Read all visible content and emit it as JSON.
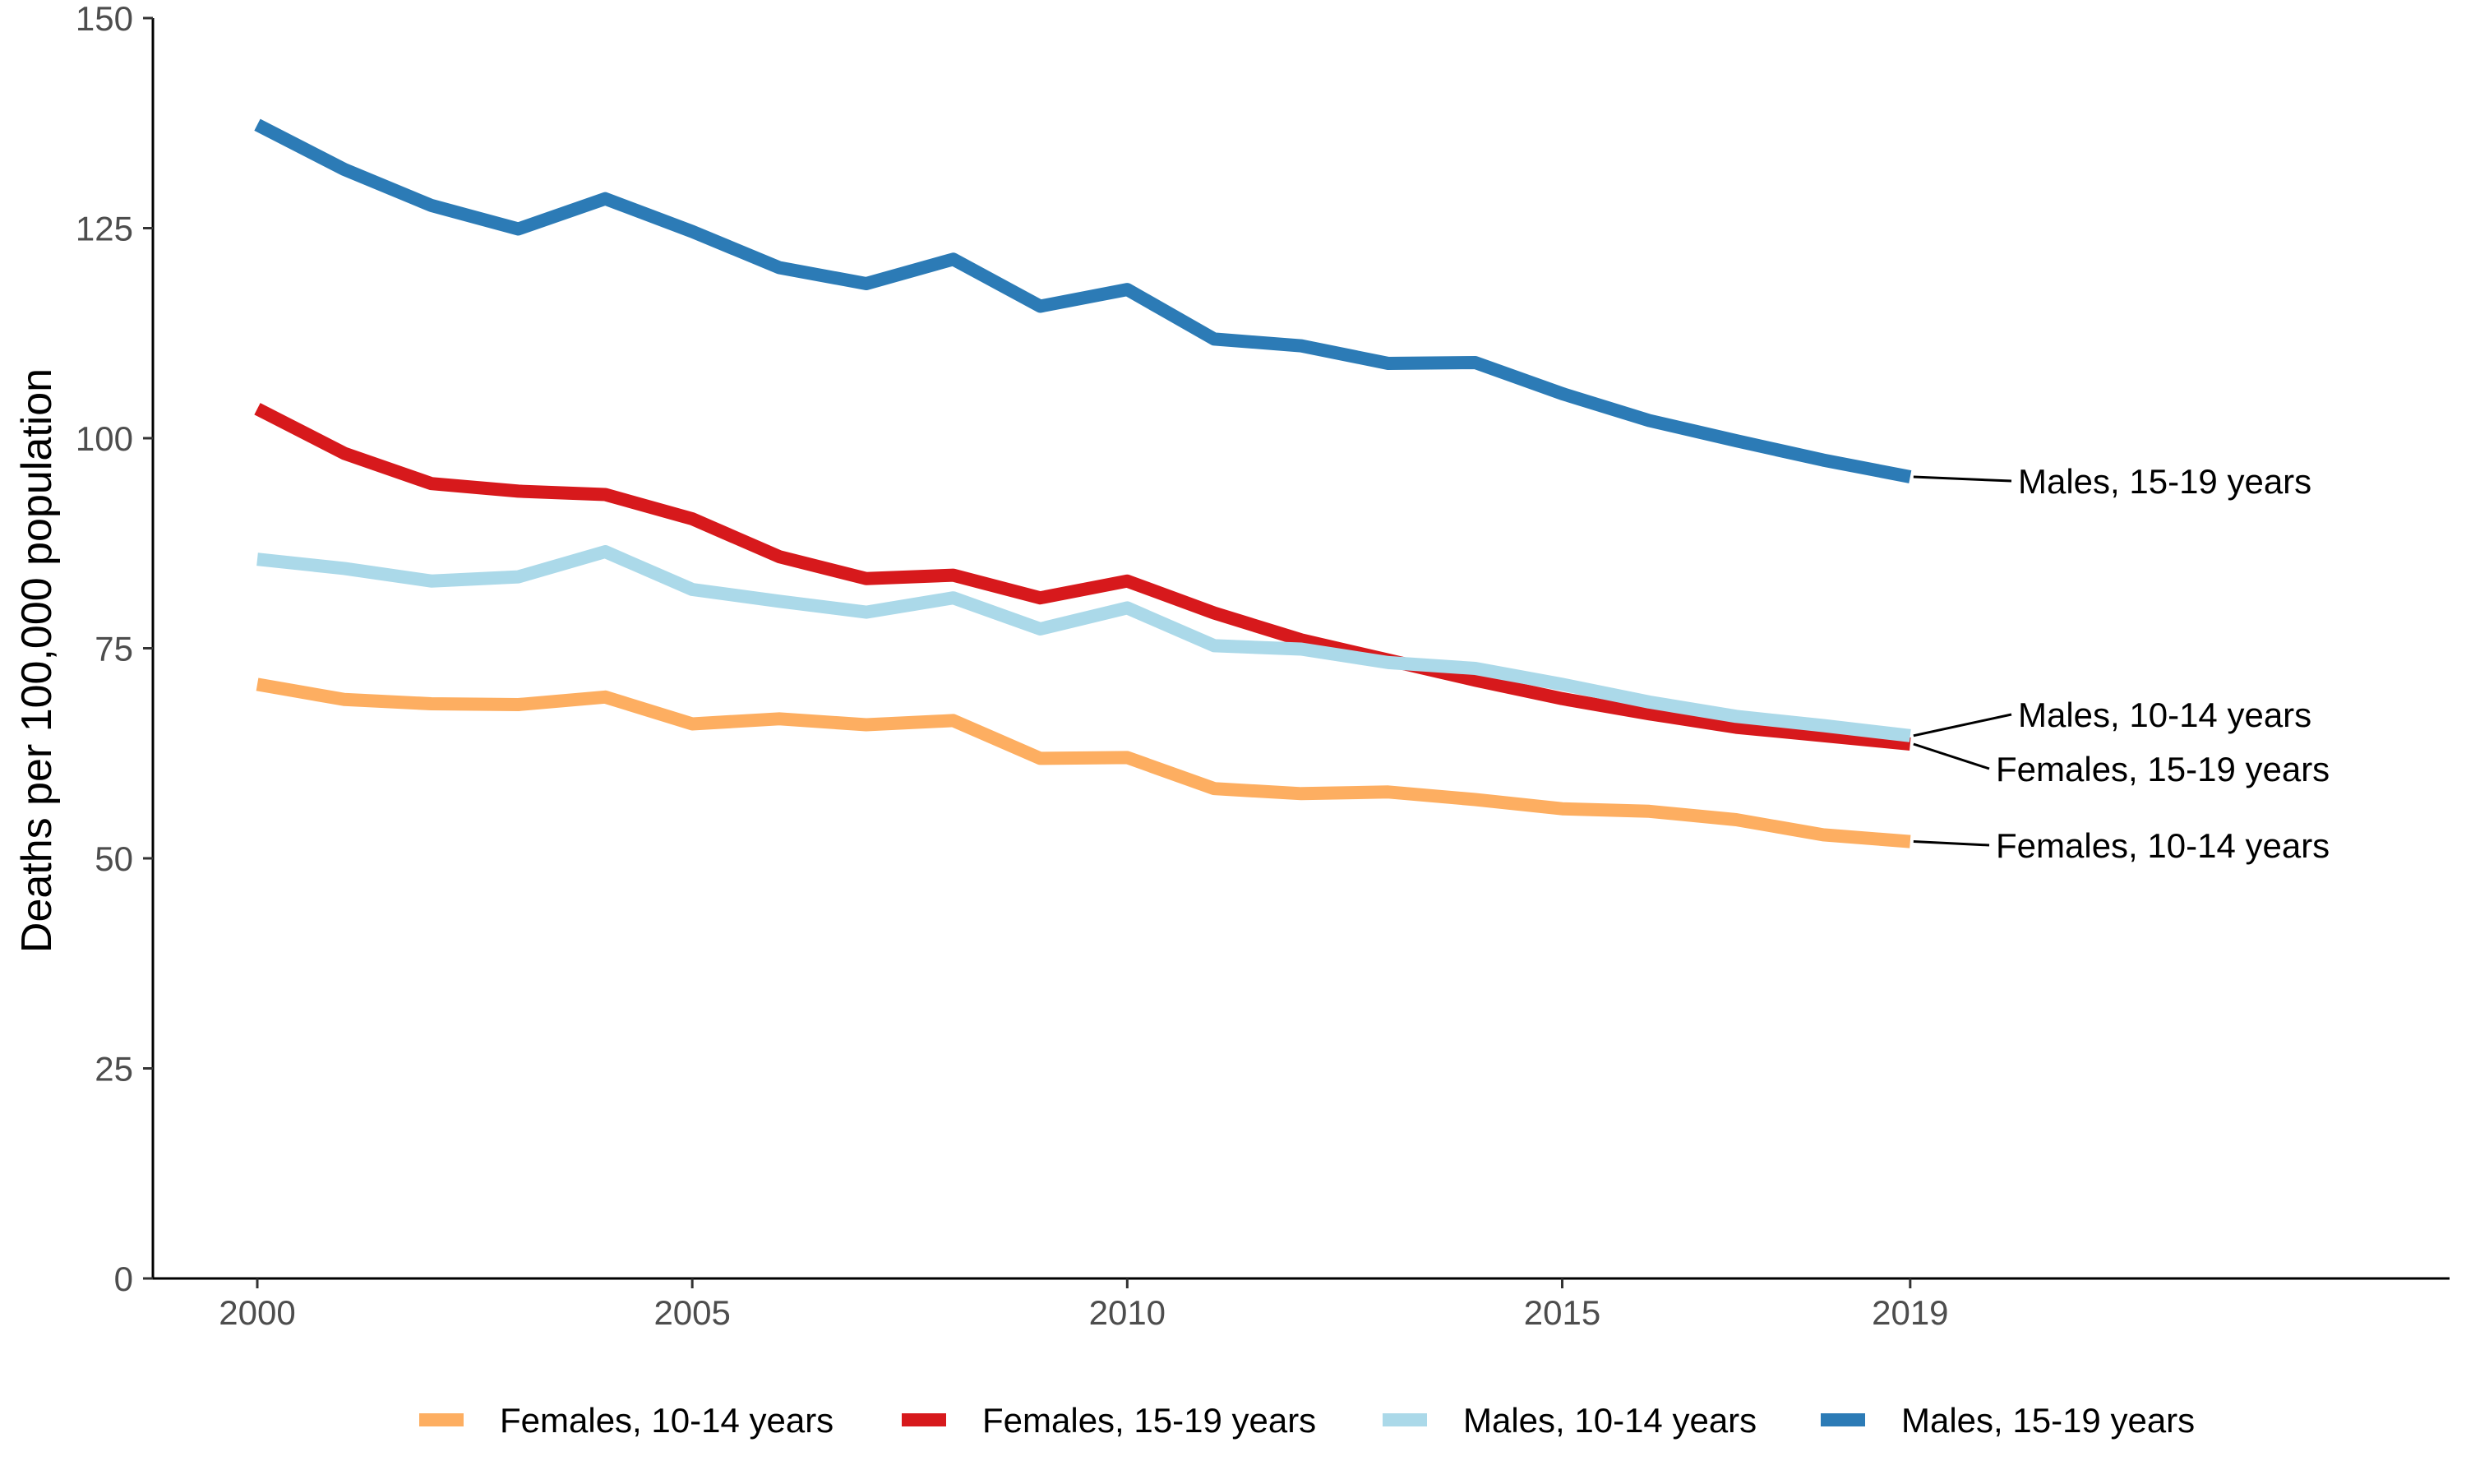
{
  "chart_data": {
    "type": "line",
    "title": "",
    "xlabel": "",
    "ylabel": "Deaths per 100,000 population",
    "xlim": [
      1998.8,
      2025.2
    ],
    "ylim": [
      0,
      150
    ],
    "x_ticks": [
      2000,
      2005,
      2010,
      2015,
      2019
    ],
    "x_tick_labels": [
      "2000",
      "2005",
      "2010",
      "2015",
      "2019"
    ],
    "y_ticks": [
      0,
      25,
      50,
      75,
      100,
      125,
      150
    ],
    "y_tick_labels": [
      "0",
      "25",
      "50",
      "75",
      "100",
      "125",
      "150"
    ],
    "grid": false,
    "legend_position": "bottom",
    "x": [
      2000,
      2001,
      2002,
      2003,
      2004,
      2005,
      2006,
      2007,
      2008,
      2009,
      2010,
      2011,
      2012,
      2013,
      2014,
      2015,
      2016,
      2017,
      2018,
      2019
    ],
    "series": [
      {
        "name": "Females, 10-14 years",
        "color": "#fdae61",
        "values": [
          70.7,
          68.9,
          68.4,
          68.3,
          69.2,
          66.0,
          66.6,
          65.9,
          66.4,
          61.9,
          62.0,
          58.3,
          57.7,
          57.9,
          57.0,
          55.9,
          55.6,
          54.6,
          52.8,
          52.0
        ],
        "end_label": "Females, 10-14 years"
      },
      {
        "name": "Females, 15-19 years",
        "color": "#d7191c",
        "values": [
          103.5,
          98.2,
          94.6,
          93.7,
          93.3,
          90.4,
          85.9,
          83.3,
          83.7,
          81.0,
          83.0,
          79.2,
          76.0,
          73.6,
          71.2,
          69.0,
          67.2,
          65.6,
          64.6,
          63.6
        ],
        "end_label": "Females, 15-19 years"
      },
      {
        "name": "Males, 10-14 years",
        "color": "#abd9e9",
        "values": [
          85.6,
          84.5,
          83.0,
          83.5,
          86.5,
          82.0,
          80.6,
          79.3,
          81.0,
          77.3,
          79.8,
          75.3,
          74.9,
          73.3,
          72.6,
          70.7,
          68.6,
          66.9,
          65.8,
          64.6
        ],
        "end_label": "Males, 10-14 years"
      },
      {
        "name": "Males, 15-19 years",
        "color": "#2c7bb6",
        "values": [
          137.3,
          132.0,
          127.7,
          124.9,
          128.5,
          124.6,
          120.3,
          118.4,
          121.3,
          115.7,
          117.7,
          111.8,
          111.0,
          108.9,
          109.0,
          105.3,
          102.1,
          99.7,
          97.4,
          95.4
        ],
        "end_label": "Males, 15-19 years"
      }
    ],
    "legend": [
      "Females, 10-14 years",
      "Females, 15-19 years",
      "Males, 10-14 years",
      "Males, 15-19 years"
    ]
  }
}
